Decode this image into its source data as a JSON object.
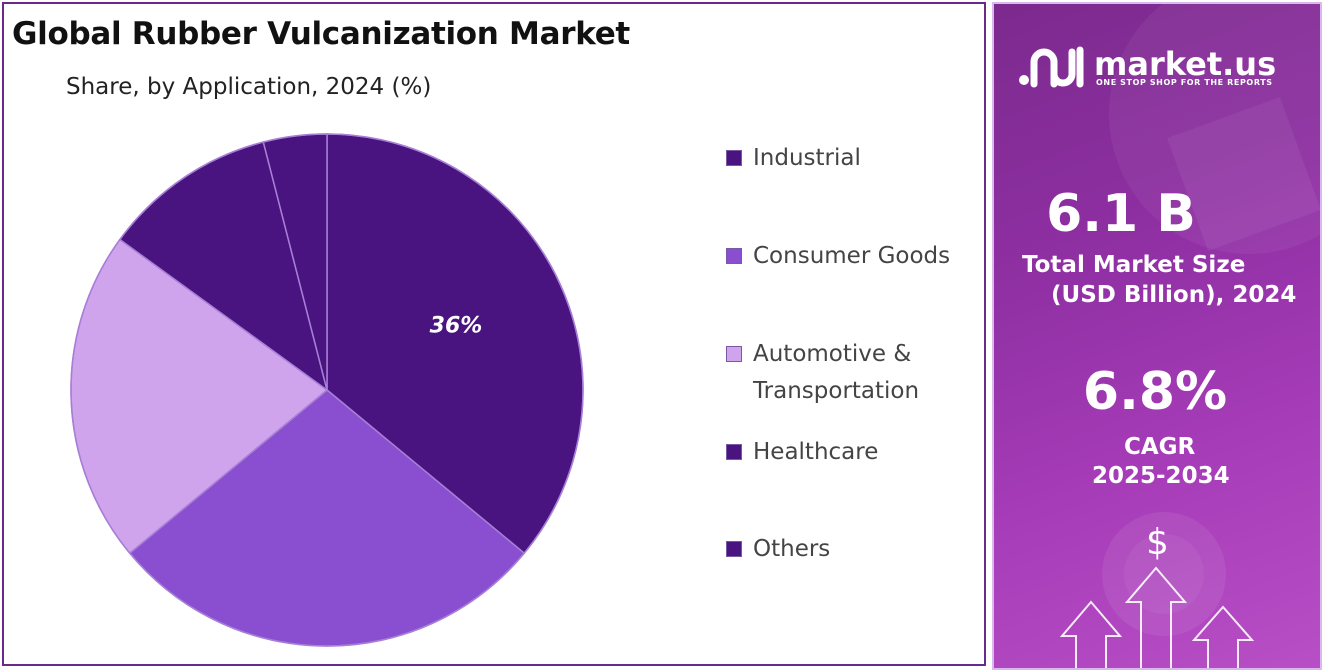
{
  "header": {
    "title": "Global Rubber Vulcanization Market",
    "subtitle": "Share, by Application, 2024 (%)"
  },
  "chart_data": {
    "type": "pie",
    "title": "Global Rubber Vulcanization Market",
    "subtitle": "Share, by Application, 2024 (%)",
    "start_angle_deg": 0,
    "direction": "clockwise",
    "legend_position": "right",
    "slices": [
      {
        "label": "Industrial",
        "value": 36,
        "color": "#4a1480",
        "data_label": "36%"
      },
      {
        "label": "Consumer Goods",
        "value": 28,
        "color": "#8a4fd0",
        "data_label": ""
      },
      {
        "label": "Automotive & Transportation",
        "value": 21,
        "color": "#d0a4ec",
        "data_label": ""
      },
      {
        "label": "Healthcare",
        "value": 11,
        "color": "#4a1480",
        "data_label": ""
      },
      {
        "label": "Others",
        "value": 4,
        "color": "#4a1480",
        "data_label": ""
      }
    ]
  },
  "legend": {
    "items": [
      {
        "lines": [
          "Industrial"
        ],
        "color": "#4a1480"
      },
      {
        "lines": [
          "Consumer Goods"
        ],
        "color": "#8a4fd0"
      },
      {
        "lines": [
          "Automotive &",
          "Transportation"
        ],
        "color": "#d0a4ec"
      },
      {
        "lines": [
          "Healthcare"
        ],
        "color": "#4a1480"
      },
      {
        "lines": [
          "Others"
        ],
        "color": "#4a1480"
      }
    ]
  },
  "sidebar": {
    "brand_name": "market.us",
    "brand_tagline": "ONE STOP SHOP FOR THE REPORTS",
    "market_size_value": "6.1 B",
    "market_size_label_1": "Total Market Size",
    "market_size_label_2": "(USD Billion), 2024",
    "cagr_value": "6.8%",
    "cagr_label_1": "CAGR",
    "cagr_label_2": "2025-2034",
    "currency_symbol": "$"
  },
  "colors": {
    "border": "#6a2a8c",
    "sidebar_bg": "#8e2fa2"
  }
}
